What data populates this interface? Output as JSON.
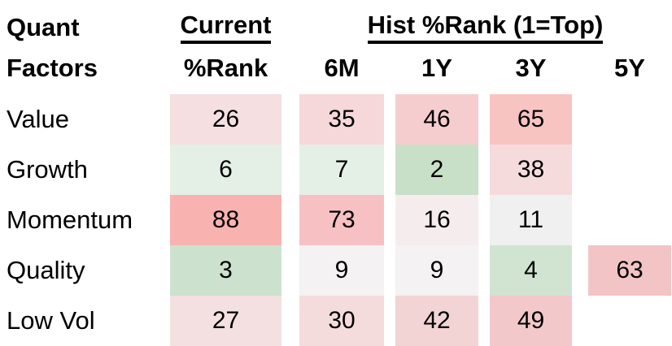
{
  "header": {
    "row_group_line1": "Quant",
    "row_group_line2": "Factors",
    "current_group": "Current",
    "hist_group": "Hist %Rank (1=Top)",
    "current_sub": "%Rank",
    "hist_subs": [
      "6M",
      "1Y",
      "3Y",
      "5Y"
    ]
  },
  "rows": [
    {
      "label": "Value",
      "cells": [
        {
          "v": "26",
          "bg": "#f5dfe1"
        },
        {
          "v": "35",
          "bg": "#f6d8da"
        },
        {
          "v": "46",
          "bg": "#f6cdcf"
        },
        {
          "v": "65",
          "bg": "#f7c4c2"
        },
        {
          "v": "",
          "bg": ""
        }
      ]
    },
    {
      "label": "Growth",
      "cells": [
        {
          "v": "6",
          "bg": "#e4efe5"
        },
        {
          "v": "7",
          "bg": "#e4f0e5"
        },
        {
          "v": "2",
          "bg": "#c8e0c8"
        },
        {
          "v": "38",
          "bg": "#f5dbdc"
        },
        {
          "v": "",
          "bg": ""
        }
      ]
    },
    {
      "label": "Momentum",
      "cells": [
        {
          "v": "88",
          "bg": "#f8b3b0"
        },
        {
          "v": "73",
          "bg": "#f7c1c3"
        },
        {
          "v": "16",
          "bg": "#f5eded"
        },
        {
          "v": "11",
          "bg": "#f1f0f0"
        },
        {
          "v": "",
          "bg": ""
        }
      ]
    },
    {
      "label": "Quality",
      "cells": [
        {
          "v": "3",
          "bg": "#cde2ce"
        },
        {
          "v": "9",
          "bg": "#f4f2f2"
        },
        {
          "v": "9",
          "bg": "#f4f2f2"
        },
        {
          "v": "4",
          "bg": "#d0e4d1"
        },
        {
          "v": "63",
          "bg": "#f3c4c6"
        }
      ]
    },
    {
      "label": "Low Vol",
      "cells": [
        {
          "v": "27",
          "bg": "#f4e0e1"
        },
        {
          "v": "30",
          "bg": "#f4dcdd"
        },
        {
          "v": "42",
          "bg": "#f2d4d5"
        },
        {
          "v": "49",
          "bg": "#f2c8ca"
        },
        {
          "v": "",
          "bg": ""
        }
      ]
    }
  ],
  "chart_data": {
    "type": "heatmap",
    "row_header": "Quant Factors",
    "column_groups": [
      {
        "label": "Current",
        "columns": [
          "%Rank"
        ]
      },
      {
        "label": "Hist %Rank (1=Top)",
        "columns": [
          "6M",
          "1Y",
          "3Y",
          "5Y"
        ]
      }
    ],
    "columns": [
      "Current %Rank",
      "6M",
      "1Y",
      "3Y",
      "5Y"
    ],
    "rows": [
      "Value",
      "Growth",
      "Momentum",
      "Quality",
      "Low Vol"
    ],
    "values": [
      [
        26,
        35,
        46,
        65,
        null
      ],
      [
        6,
        7,
        2,
        38,
        null
      ],
      [
        88,
        73,
        16,
        11,
        null
      ],
      [
        3,
        9,
        9,
        4,
        63
      ],
      [
        27,
        30,
        42,
        49,
        null
      ]
    ],
    "color_scale": {
      "low": "#c8e0c8",
      "mid": "#f2f2f2",
      "high": "#f8b3b0",
      "meaning": "rank 1 = top (green), higher rank = red"
    },
    "layout": {
      "grid": false,
      "legend": false,
      "blank_cells": "5Y column empty except Quality"
    }
  }
}
